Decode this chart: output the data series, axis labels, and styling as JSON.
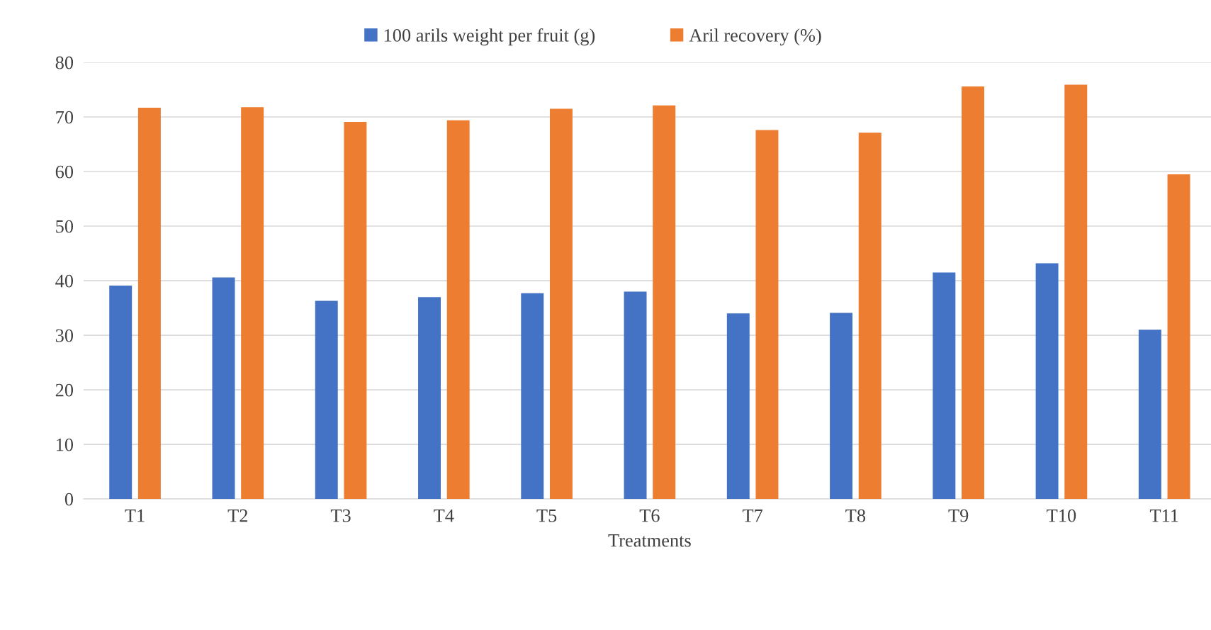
{
  "chart_data": {
    "type": "bar",
    "xlabel": "Treatments",
    "categories": [
      "T1",
      "T2",
      "T3",
      "T4",
      "T5",
      "T6",
      "T7",
      "T8",
      "T9",
      "T10",
      "T11"
    ],
    "series": [
      {
        "name": "100 arils weight per fruit (g)",
        "color": "#4472c4",
        "values": [
          39.1,
          40.6,
          36.3,
          37.0,
          37.7,
          38.0,
          34.0,
          34.1,
          41.5,
          43.2,
          31.0
        ]
      },
      {
        "name": "Aril recovery (%)",
        "color": "#ed7d31",
        "values": [
          71.7,
          71.8,
          69.1,
          69.4,
          71.5,
          72.1,
          67.6,
          67.1,
          75.6,
          75.9,
          59.5
        ]
      }
    ],
    "ylim": [
      0,
      80
    ],
    "yticks": [
      0,
      10,
      20,
      30,
      40,
      50,
      60,
      70,
      80
    ],
    "grid": "y",
    "legend": "top"
  }
}
